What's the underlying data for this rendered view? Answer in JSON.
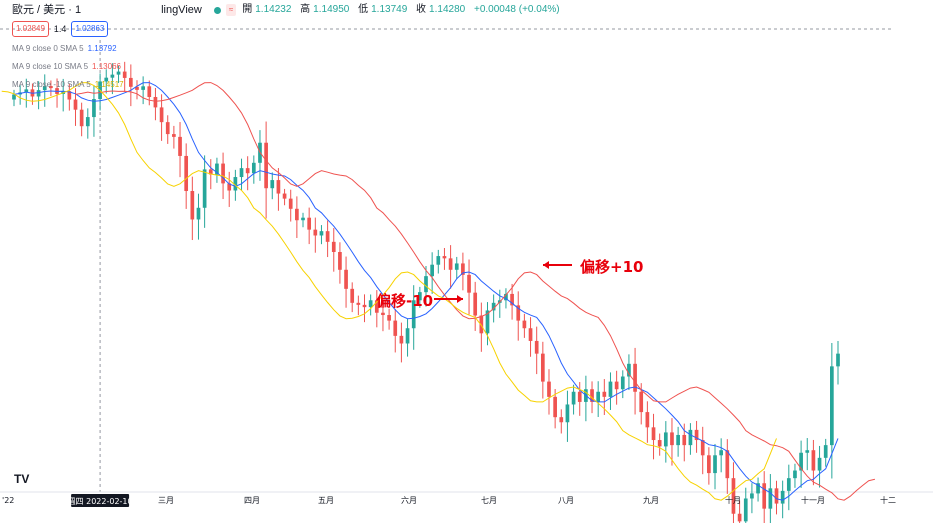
{
  "header": {
    "symbol": "歐元 / 美元 · 1",
    "brand": "lingView",
    "wave_icon": "≈",
    "ohlc": [
      {
        "label": "開",
        "value": "1.14232"
      },
      {
        "label": "高",
        "value": "1.14950"
      },
      {
        "label": "低",
        "value": "1.13749"
      },
      {
        "label": "收",
        "value": "1.14280"
      }
    ],
    "change": "+0.00048 (+0.04%)",
    "chip_sell": "1.02849",
    "chip_ratio": "1.4",
    "chip_buy": "1.02863"
  },
  "indicators": [
    {
      "label": "MA 9 close 0 SMA 5",
      "value": "1.13792",
      "color": "#2962ff"
    },
    {
      "label": "MA 9 close 10 SMA 5",
      "value": "1.13066",
      "color": "#ef5350"
    },
    {
      "label": "MA 9 close -10 SMA 5",
      "value": "1.14517",
      "color": "#f7d200"
    }
  ],
  "annotations": {
    "plus": "偏移+10",
    "minus": "偏移-10"
  },
  "crosshair_date": "週四 2022-02-10",
  "logo": "TV",
  "chart_data": {
    "type": "candlestick",
    "x_ticks": [
      "'22",
      "三月",
      "四月",
      "五月",
      "六月",
      "七月",
      "八月",
      "九月",
      "十月",
      "十一月",
      "十二"
    ],
    "ylim": [
      0.99,
      1.16
    ],
    "colors": {
      "up": "#26a69a",
      "down": "#ef5350",
      "ma0": "#2962ff",
      "ma_plus": "#ef5350",
      "ma_minus": "#f7d200"
    },
    "closes": [
      1.137,
      1.1378,
      1.139,
      1.1362,
      1.1387,
      1.1403,
      1.1395,
      1.1372,
      1.1383,
      1.135,
      1.131,
      1.1245,
      1.1281,
      1.1352,
      1.1421,
      1.1436,
      1.1448,
      1.146,
      1.1435,
      1.14,
      1.1388,
      1.1402,
      1.136,
      1.1319,
      1.1261,
      1.1214,
      1.1203,
      1.1128,
      1.099,
      1.0878,
      1.0924,
      1.1075,
      1.1055,
      1.1098,
      1.102,
      1.0992,
      1.1045,
      1.108,
      1.106,
      1.1101,
      1.118,
      1.1001,
      1.1033,
      1.098,
      1.096,
      1.092,
      1.0875,
      1.0885,
      1.0838,
      1.0815,
      1.0832,
      1.079,
      1.075,
      1.068,
      1.0605,
      1.055,
      1.0542,
      1.0533,
      1.056,
      1.0511,
      1.0502,
      1.048,
      1.042,
      1.039,
      1.045,
      1.056,
      1.0592,
      1.0655,
      1.07,
      1.0734,
      1.0725,
      1.068,
      1.0705,
      1.066,
      1.059,
      1.05,
      1.043,
      1.052,
      1.055,
      1.056,
      1.0585,
      1.054,
      1.048,
      1.045,
      1.04,
      1.035,
      1.024,
      1.018,
      1.01,
      1.008,
      1.015,
      1.02,
      1.016,
      1.021,
      1.016,
      1.02,
      1.018,
      1.024,
      1.021,
      1.026,
      1.031,
      1.02,
      1.012,
      1.006,
      1.001,
      0.9985,
      1.004,
      0.999,
      1.003,
      0.999,
      1.005,
      1.001,
      0.995,
      0.988,
      0.995,
      0.997,
      0.986,
      0.972,
      0.969,
      0.978,
      0.98,
      0.984,
      0.974,
      0.982,
      0.976,
      0.981,
      0.986,
      0.989,
      0.996,
      0.997,
      0.989,
      0.994,
      0.999,
      1.03,
      1.035
    ]
  }
}
